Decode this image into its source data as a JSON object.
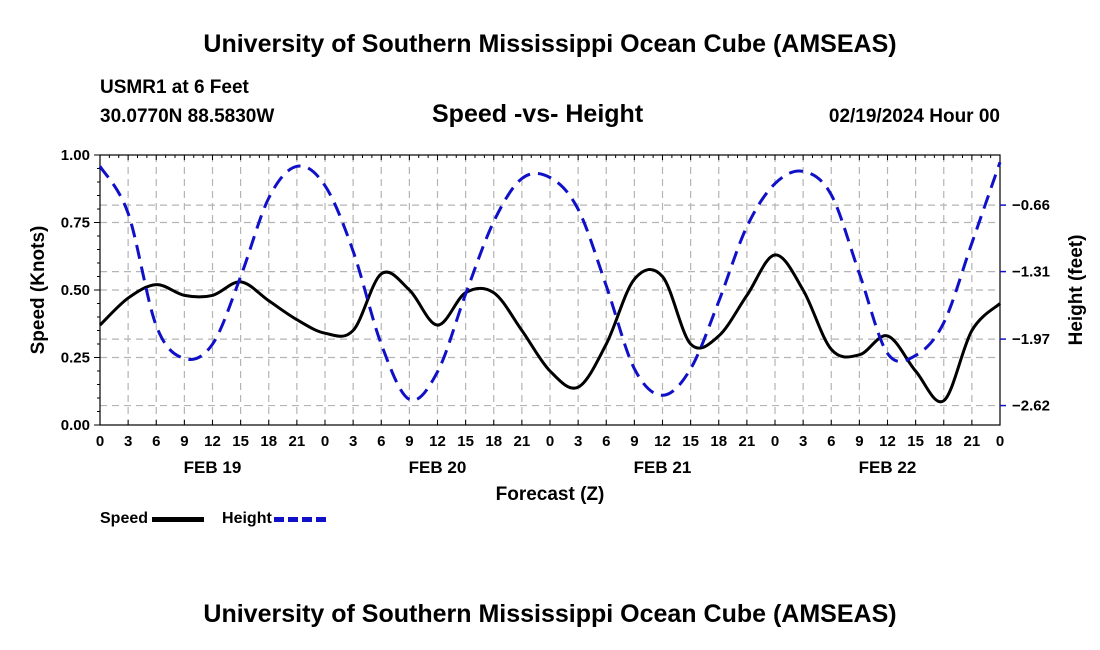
{
  "header": {
    "title": "University of Southern Mississippi Ocean Cube (AMSEAS)",
    "station": "USMR1 at 6 Feet",
    "coords": "30.0770N  88.5830W",
    "subtitle": "Speed -vs- Height",
    "date": "02/19/2024 Hour 00"
  },
  "footer": {
    "title": "University of Southern Mississippi Ocean Cube (AMSEAS)"
  },
  "legend": {
    "speed_label": "Speed",
    "height_label": "Height"
  },
  "colors": {
    "speed": "#000000",
    "height": "#1010c8",
    "grid": "#b4b4b4"
  },
  "chart_data": {
    "type": "line",
    "title": "Speed -vs- Height",
    "xlabel": "Forecast (Z)",
    "ylabel": "Speed (Knots)",
    "y2label": "Height (feet)",
    "xlim": [
      0,
      96
    ],
    "ylim": [
      0,
      1
    ],
    "y2lim": [
      -2.81,
      -0.17
    ],
    "x_tick_labels": [
      "0",
      "3",
      "6",
      "9",
      "12",
      "15",
      "18",
      "21",
      "0",
      "3",
      "6",
      "9",
      "12",
      "15",
      "18",
      "21",
      "0",
      "3",
      "6",
      "9",
      "12",
      "15",
      "18",
      "21",
      "0",
      "3",
      "6",
      "9",
      "12",
      "15",
      "18",
      "21",
      "0"
    ],
    "y_ticks": [
      0,
      0.25,
      0.5,
      0.75,
      1.0
    ],
    "y_tick_labels": [
      "0.00",
      "0.25",
      "0.50",
      "0.75",
      "1.00"
    ],
    "y2_ticks": [
      -2.62,
      -1.97,
      -1.31,
      -0.66
    ],
    "y2_tick_labels": [
      "−2.62",
      "−1.97",
      "−1.31",
      "−0.66"
    ],
    "day_labels": [
      {
        "x": 12,
        "label": "FEB 19"
      },
      {
        "x": 36,
        "label": "FEB 20"
      },
      {
        "x": 60,
        "label": "FEB 21"
      },
      {
        "x": 84,
        "label": "FEB 22"
      }
    ],
    "series": [
      {
        "name": "Speed",
        "axis": "left",
        "x": [
          0,
          3,
          6,
          9,
          12,
          15,
          18,
          21,
          24,
          27,
          30,
          33,
          36,
          39,
          42,
          45,
          48,
          51,
          54,
          57,
          60,
          63,
          66,
          69,
          72,
          75,
          78,
          81,
          84,
          87,
          90,
          93,
          96
        ],
        "values": [
          0.37,
          0.47,
          0.52,
          0.48,
          0.48,
          0.53,
          0.46,
          0.39,
          0.34,
          0.35,
          0.56,
          0.5,
          0.37,
          0.49,
          0.49,
          0.35,
          0.2,
          0.14,
          0.3,
          0.54,
          0.55,
          0.3,
          0.33,
          0.48,
          0.63,
          0.5,
          0.28,
          0.26,
          0.33,
          0.2,
          0.09,
          0.35,
          0.45
        ]
      },
      {
        "name": "Height",
        "axis": "right",
        "x": [
          0,
          3,
          6,
          9,
          12,
          15,
          18,
          21,
          24,
          27,
          30,
          33,
          36,
          39,
          42,
          45,
          48,
          51,
          54,
          57,
          60,
          63,
          66,
          69,
          72,
          75,
          78,
          81,
          84,
          87,
          90,
          93,
          96
        ],
        "values": [
          -0.28,
          -0.74,
          -1.84,
          -2.16,
          -2.02,
          -1.36,
          -0.59,
          -0.28,
          -0.47,
          -1.11,
          -2.02,
          -2.56,
          -2.29,
          -1.53,
          -0.82,
          -0.4,
          -0.39,
          -0.7,
          -1.45,
          -2.26,
          -2.52,
          -2.26,
          -1.6,
          -0.87,
          -0.45,
          -0.33,
          -0.56,
          -1.33,
          -2.11,
          -2.13,
          -1.81,
          -1.03,
          -0.24
        ]
      }
    ]
  }
}
